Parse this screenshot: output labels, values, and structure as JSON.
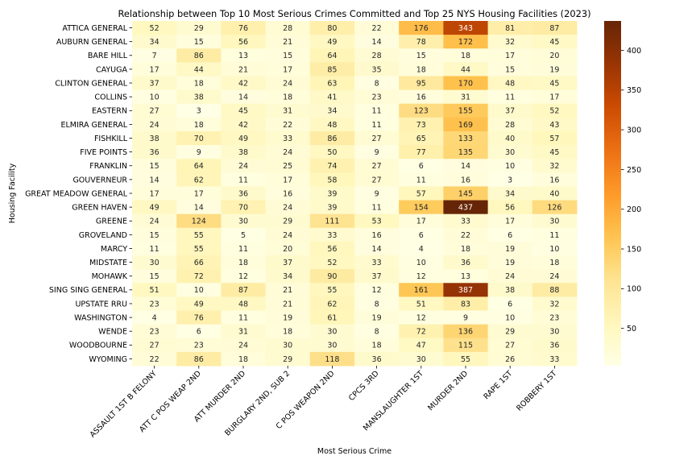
{
  "chart_data": {
    "type": "heatmap",
    "title": "Relationship between Top 10 Most Serious Crimes Committed and Top 25 NYS Housing Facilities (2023)",
    "xlabel": "Most Serious Crime",
    "ylabel": "Housing Facility",
    "columns": [
      "ASSAULT 1ST B FELONY",
      "ATT C POS WEAP 2ND",
      "ATT MURDER 2ND",
      "BURGLARY 2ND, SUB 2",
      "C POS WEAPON 2ND",
      "CPCS 3RD",
      "MANSLAUGHTER 1ST",
      "MURDER 2ND",
      "RAPE 1ST",
      "ROBBERY 1ST"
    ],
    "rows": [
      "ATTICA GENERAL",
      "AUBURN GENERAL",
      "BARE HILL",
      "CAYUGA",
      "CLINTON GENERAL",
      "COLLINS",
      "EASTERN",
      "ELMIRA GENERAL",
      "FISHKILL",
      "FIVE POINTS",
      "FRANKLIN",
      "GOUVERNEUR",
      "GREAT MEADOW GENERAL",
      "GREEN HAVEN",
      "GREENE",
      "GROVELAND",
      "MARCY",
      "MIDSTATE",
      "MOHAWK",
      "SING SING GENERAL",
      "UPSTATE RRU",
      "WASHINGTON",
      "WENDE",
      "WOODBOURNE",
      "WYOMING"
    ],
    "values": [
      [
        52,
        29,
        76,
        28,
        80,
        22,
        176,
        343,
        81,
        87
      ],
      [
        34,
        15,
        56,
        21,
        49,
        14,
        78,
        172,
        32,
        45
      ],
      [
        7,
        86,
        13,
        15,
        64,
        28,
        15,
        18,
        17,
        20
      ],
      [
        17,
        44,
        21,
        17,
        85,
        35,
        18,
        44,
        15,
        19
      ],
      [
        37,
        18,
        42,
        24,
        63,
        8,
        95,
        170,
        48,
        45
      ],
      [
        10,
        38,
        14,
        18,
        41,
        23,
        16,
        31,
        11,
        17
      ],
      [
        27,
        3,
        45,
        31,
        34,
        11,
        123,
        155,
        37,
        52
      ],
      [
        24,
        18,
        42,
        22,
        48,
        11,
        73,
        169,
        28,
        43
      ],
      [
        38,
        70,
        49,
        33,
        86,
        27,
        65,
        133,
        40,
        57
      ],
      [
        36,
        9,
        38,
        24,
        50,
        9,
        77,
        135,
        30,
        45
      ],
      [
        15,
        64,
        24,
        25,
        74,
        27,
        6,
        14,
        10,
        32
      ],
      [
        14,
        62,
        11,
        17,
        58,
        27,
        11,
        16,
        3,
        16
      ],
      [
        17,
        17,
        36,
        16,
        39,
        9,
        57,
        145,
        34,
        40
      ],
      [
        49,
        14,
        70,
        24,
        39,
        11,
        154,
        437,
        56,
        126
      ],
      [
        24,
        124,
        30,
        29,
        111,
        53,
        17,
        33,
        17,
        30
      ],
      [
        15,
        55,
        5,
        24,
        33,
        16,
        6,
        22,
        6,
        11
      ],
      [
        11,
        55,
        11,
        20,
        56,
        14,
        4,
        18,
        19,
        10
      ],
      [
        30,
        66,
        18,
        37,
        52,
        33,
        10,
        36,
        19,
        18
      ],
      [
        15,
        72,
        12,
        34,
        90,
        37,
        12,
        13,
        24,
        24
      ],
      [
        51,
        10,
        87,
        21,
        55,
        12,
        161,
        387,
        38,
        88
      ],
      [
        23,
        49,
        48,
        21,
        62,
        8,
        51,
        83,
        6,
        32
      ],
      [
        4,
        76,
        11,
        19,
        61,
        19,
        12,
        9,
        10,
        23
      ],
      [
        23,
        6,
        31,
        18,
        30,
        8,
        72,
        136,
        29,
        30
      ],
      [
        27,
        23,
        24,
        30,
        30,
        18,
        47,
        115,
        27,
        36
      ],
      [
        22,
        86,
        18,
        29,
        118,
        36,
        30,
        55,
        26,
        33
      ]
    ],
    "colormap": "YlOrBr",
    "vmin": 3,
    "vmax": 437,
    "colorbar_ticks": [
      50,
      100,
      150,
      200,
      250,
      300,
      350,
      400
    ],
    "annotations": true
  }
}
